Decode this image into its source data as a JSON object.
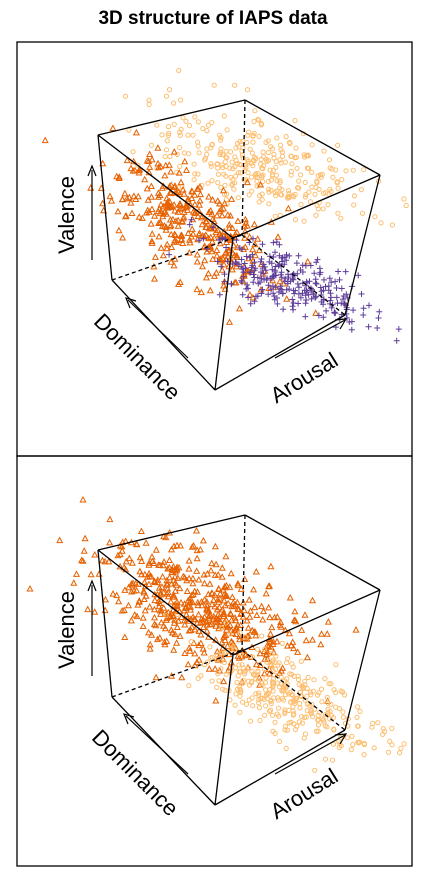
{
  "figure": {
    "title": "3D structure of IAPS data"
  },
  "chart_data": [
    {
      "type": "scatter",
      "axes": {
        "x": "Arousal",
        "y": "Valence",
        "z": "Dominance"
      },
      "series": [
        {
          "marker": "circle",
          "color": "#FDBE6F",
          "cluster": "light"
        },
        {
          "marker": "triangle",
          "color": "#E66101",
          "cluster": "dark"
        },
        {
          "marker": "plus",
          "color": "#5E3C99",
          "cluster": "purple"
        }
      ]
    },
    {
      "type": "scatter",
      "axes": {
        "x": "Arousal",
        "y": "Valence",
        "z": "Dominance"
      },
      "series": [
        {
          "marker": "triangle",
          "color": "#E66101",
          "cluster": "dark"
        },
        {
          "marker": "circle",
          "color": "#FDBE6F",
          "cluster": "light"
        }
      ]
    }
  ]
}
